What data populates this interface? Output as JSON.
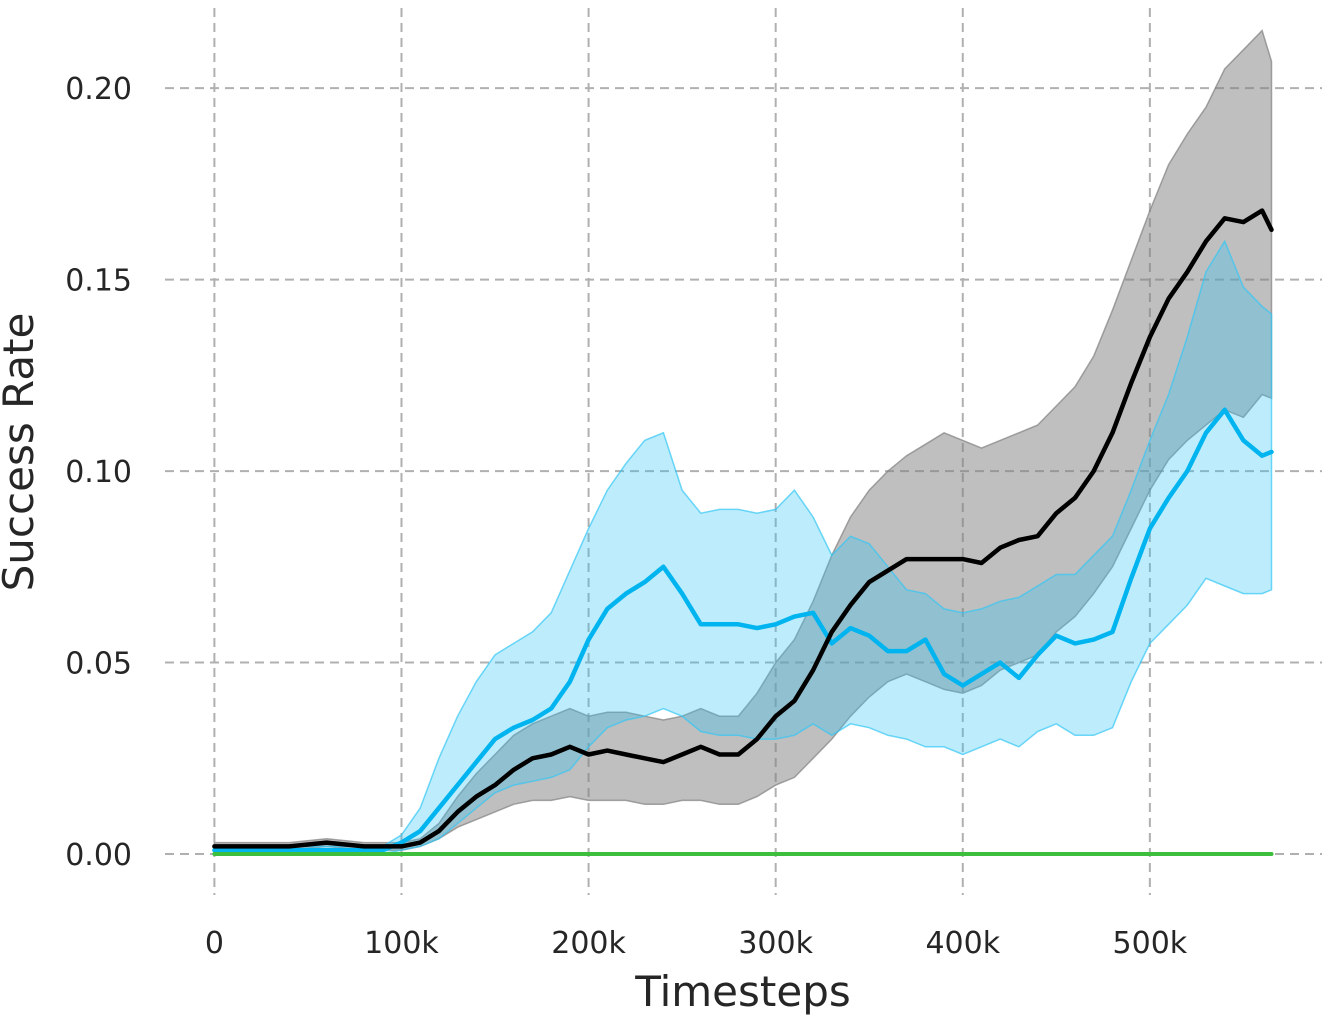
{
  "chart_data": {
    "type": "line",
    "title": "",
    "xlabel": "Timesteps",
    "ylabel": "Success Rate",
    "xlim": [
      -28000,
      592000
    ],
    "ylim": [
      -0.012,
      0.223
    ],
    "xticks": [
      0,
      100000,
      200000,
      300000,
      400000,
      500000
    ],
    "xtick_labels": [
      "0",
      "100k",
      "200k",
      "300k",
      "400k",
      "500k"
    ],
    "yticks": [
      0.0,
      0.05,
      0.1,
      0.15,
      0.2
    ],
    "ytick_labels": [
      "0.00",
      "0.05",
      "0.10",
      "0.15",
      "0.20"
    ],
    "grid": true,
    "legend": "none",
    "series": [
      {
        "color": "#000000",
        "band_color": "#808080",
        "x": [
          0,
          20000,
          40000,
          60000,
          80000,
          100000,
          110000,
          120000,
          130000,
          140000,
          150000,
          160000,
          170000,
          180000,
          190000,
          200000,
          210000,
          220000,
          230000,
          240000,
          250000,
          260000,
          270000,
          280000,
          290000,
          300000,
          310000,
          320000,
          330000,
          340000,
          350000,
          360000,
          370000,
          380000,
          390000,
          400000,
          410000,
          420000,
          430000,
          440000,
          450000,
          460000,
          470000,
          480000,
          490000,
          500000,
          510000,
          520000,
          530000,
          540000,
          550000,
          560000,
          565000
        ],
        "mean": [
          0.002,
          0.002,
          0.002,
          0.003,
          0.002,
          0.002,
          0.003,
          0.006,
          0.011,
          0.015,
          0.018,
          0.022,
          0.025,
          0.026,
          0.028,
          0.026,
          0.027,
          0.026,
          0.025,
          0.024,
          0.026,
          0.028,
          0.026,
          0.026,
          0.03,
          0.036,
          0.04,
          0.048,
          0.058,
          0.065,
          0.071,
          0.074,
          0.077,
          0.077,
          0.077,
          0.077,
          0.076,
          0.08,
          0.082,
          0.083,
          0.089,
          0.093,
          0.1,
          0.11,
          0.123,
          0.135,
          0.145,
          0.152,
          0.16,
          0.166,
          0.165,
          0.168,
          0.163
        ],
        "upper": [
          0.003,
          0.003,
          0.003,
          0.004,
          0.003,
          0.003,
          0.004,
          0.008,
          0.015,
          0.021,
          0.026,
          0.031,
          0.034,
          0.036,
          0.038,
          0.036,
          0.037,
          0.037,
          0.036,
          0.035,
          0.036,
          0.038,
          0.036,
          0.036,
          0.042,
          0.05,
          0.056,
          0.066,
          0.078,
          0.088,
          0.095,
          0.1,
          0.104,
          0.107,
          0.11,
          0.108,
          0.106,
          0.108,
          0.11,
          0.112,
          0.117,
          0.122,
          0.13,
          0.142,
          0.155,
          0.168,
          0.18,
          0.188,
          0.195,
          0.205,
          0.21,
          0.215,
          0.207
        ],
        "lower": [
          0.001,
          0.001,
          0.001,
          0.002,
          0.001,
          0.001,
          0.002,
          0.004,
          0.007,
          0.009,
          0.011,
          0.013,
          0.014,
          0.014,
          0.015,
          0.014,
          0.014,
          0.014,
          0.013,
          0.013,
          0.014,
          0.014,
          0.013,
          0.013,
          0.015,
          0.018,
          0.02,
          0.025,
          0.03,
          0.036,
          0.041,
          0.045,
          0.047,
          0.045,
          0.043,
          0.042,
          0.044,
          0.048,
          0.05,
          0.052,
          0.058,
          0.062,
          0.068,
          0.075,
          0.085,
          0.095,
          0.103,
          0.108,
          0.112,
          0.116,
          0.114,
          0.12,
          0.119
        ]
      },
      {
        "color": "#00b4f0",
        "band_color": "#33c6f5",
        "x": [
          0,
          20000,
          40000,
          60000,
          80000,
          90000,
          100000,
          110000,
          120000,
          130000,
          140000,
          150000,
          160000,
          170000,
          180000,
          190000,
          200000,
          210000,
          220000,
          230000,
          240000,
          250000,
          260000,
          270000,
          280000,
          290000,
          300000,
          310000,
          320000,
          330000,
          340000,
          350000,
          360000,
          370000,
          380000,
          390000,
          400000,
          410000,
          420000,
          430000,
          440000,
          450000,
          460000,
          470000,
          480000,
          490000,
          500000,
          510000,
          520000,
          530000,
          540000,
          550000,
          560000,
          565000
        ],
        "mean": [
          0.001,
          0.001,
          0.001,
          0.001,
          0.001,
          0.001,
          0.003,
          0.006,
          0.012,
          0.018,
          0.024,
          0.03,
          0.033,
          0.035,
          0.038,
          0.045,
          0.056,
          0.064,
          0.068,
          0.071,
          0.075,
          0.068,
          0.06,
          0.06,
          0.06,
          0.059,
          0.06,
          0.062,
          0.063,
          0.055,
          0.059,
          0.057,
          0.053,
          0.053,
          0.056,
          0.047,
          0.044,
          0.047,
          0.05,
          0.046,
          0.052,
          0.057,
          0.055,
          0.056,
          0.058,
          0.072,
          0.085,
          0.093,
          0.1,
          0.11,
          0.116,
          0.108,
          0.104,
          0.105
        ],
        "upper": [
          0.002,
          0.002,
          0.002,
          0.002,
          0.002,
          0.002,
          0.005,
          0.012,
          0.025,
          0.036,
          0.045,
          0.052,
          0.055,
          0.058,
          0.063,
          0.074,
          0.085,
          0.095,
          0.102,
          0.108,
          0.11,
          0.095,
          0.089,
          0.09,
          0.09,
          0.089,
          0.09,
          0.095,
          0.088,
          0.078,
          0.083,
          0.081,
          0.075,
          0.069,
          0.068,
          0.064,
          0.063,
          0.064,
          0.066,
          0.067,
          0.07,
          0.073,
          0.073,
          0.078,
          0.083,
          0.095,
          0.108,
          0.12,
          0.135,
          0.152,
          0.16,
          0.148,
          0.143,
          0.141
        ],
        "lower": [
          0.0,
          0.0,
          0.0,
          0.0,
          0.0,
          0.0,
          0.001,
          0.002,
          0.004,
          0.008,
          0.012,
          0.016,
          0.018,
          0.019,
          0.02,
          0.022,
          0.028,
          0.033,
          0.035,
          0.036,
          0.038,
          0.036,
          0.032,
          0.031,
          0.031,
          0.03,
          0.03,
          0.031,
          0.034,
          0.031,
          0.034,
          0.033,
          0.031,
          0.03,
          0.028,
          0.028,
          0.026,
          0.028,
          0.03,
          0.028,
          0.032,
          0.034,
          0.031,
          0.031,
          0.033,
          0.045,
          0.055,
          0.06,
          0.065,
          0.072,
          0.07,
          0.068,
          0.068,
          0.069
        ]
      },
      {
        "color": "#3dbf3d",
        "band_color": "",
        "x": [
          0,
          565000
        ],
        "mean": [
          0.0,
          0.0
        ],
        "upper": [
          0.0,
          0.0
        ],
        "lower": [
          0.0,
          0.0
        ]
      }
    ]
  }
}
